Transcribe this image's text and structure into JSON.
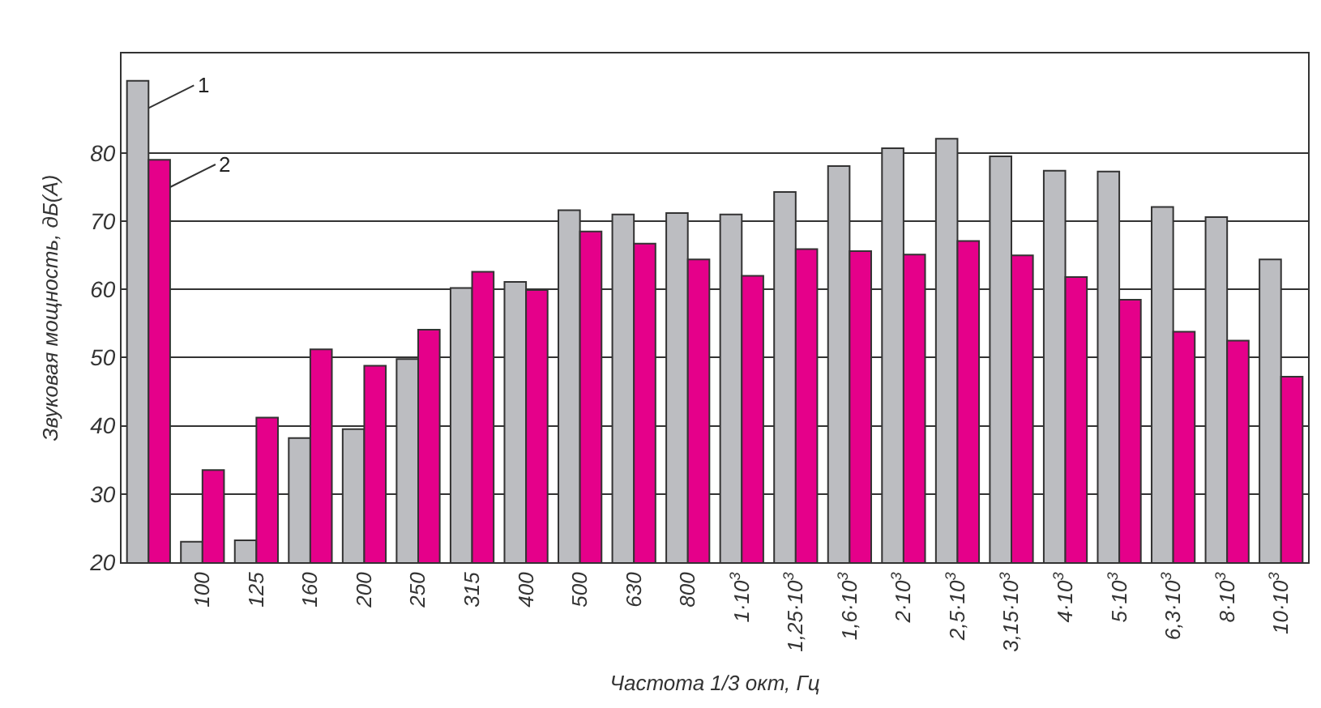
{
  "chart_data": {
    "type": "bar",
    "xlabel": "Частота 1/3 окт, Гц",
    "ylabel": "Звуковая мощность, дБ(А)",
    "categories": [
      null,
      "100",
      "125",
      "160",
      "200",
      "250",
      "315",
      "400",
      "500",
      "630",
      "800",
      "1·10$^{3}$",
      "1,25·10$^{3}$",
      "1,6·10$^{3}$",
      "2·10$^{3}$",
      "2,5·10$^{3}$",
      "3,15·10$^{3}$",
      "4·10$^{3}$",
      "5·10$^{3}$",
      "6,3·10$^{3}$",
      "8·10$^{3}$",
      "10·10$^{3}$"
    ],
    "series": [
      {
        "name": "1",
        "color": "#bcbdc1",
        "values": [
          90.6,
          23.0,
          23.2,
          38.2,
          39.5,
          49.8,
          60.2,
          61.1,
          71.6,
          71.0,
          71.2,
          71.0,
          74.3,
          78.1,
          80.7,
          82.1,
          79.5,
          77.4,
          77.3,
          72.1,
          70.6,
          64.4
        ]
      },
      {
        "name": "2",
        "color": "#e5008a",
        "values": [
          79.0,
          33.5,
          41.2,
          51.2,
          48.8,
          54.1,
          62.6,
          59.9,
          68.5,
          66.7,
          64.4,
          62.0,
          65.9,
          65.6,
          65.1,
          67.1,
          65.0,
          61.8,
          58.5,
          53.8,
          52.5,
          47.2
        ]
      }
    ],
    "ylim": [
      20,
      94.6
    ],
    "yticks": [
      20,
      30,
      40,
      50,
      60,
      70,
      80
    ],
    "grid": "y",
    "legend": "top left"
  }
}
